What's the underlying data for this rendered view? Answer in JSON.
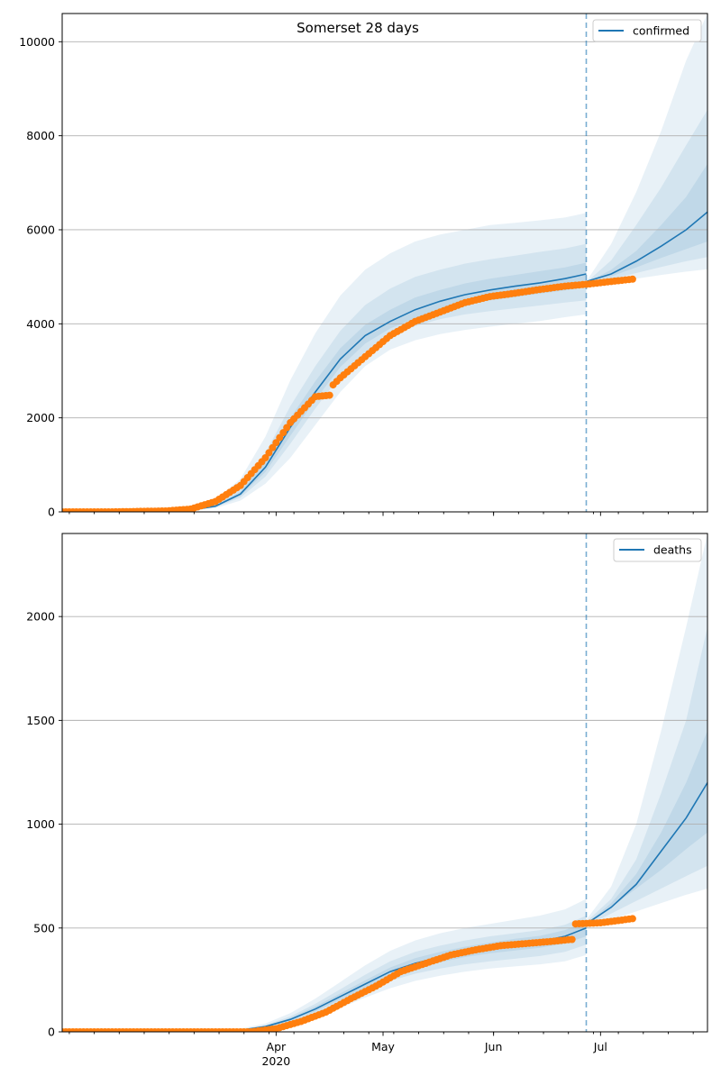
{
  "chart_data": [
    {
      "type": "line",
      "title": "Somerset 28 days",
      "legend": {
        "label": "confirmed",
        "position": "top-right"
      },
      "x_range": [
        "2020-02-01",
        "2020-07-31"
      ],
      "ylim": [
        0,
        10600
      ],
      "yticks": [
        0,
        2000,
        4000,
        6000,
        8000,
        10000
      ],
      "grid": "y",
      "forecast_start": "2020-06-27",
      "colors": {
        "model": "#1f77b4",
        "band": "#1f77b4",
        "observed": "#ff7f0e",
        "vline": "#1f77b4"
      },
      "model": {
        "x": [
          "2020-02-01",
          "2020-03-01",
          "2020-03-08",
          "2020-03-15",
          "2020-03-22",
          "2020-03-29",
          "2020-04-05",
          "2020-04-12",
          "2020-04-19",
          "2020-04-26",
          "2020-05-03",
          "2020-05-10",
          "2020-05-17",
          "2020-05-24",
          "2020-05-31",
          "2020-06-07",
          "2020-06-14",
          "2020-06-21",
          "2020-06-27"
        ],
        "y": [
          0,
          10,
          40,
          120,
          380,
          950,
          1800,
          2550,
          3250,
          3750,
          4050,
          4300,
          4480,
          4620,
          4720,
          4800,
          4870,
          4960,
          5060
        ]
      },
      "bands": [
        {
          "x": [
            "2020-02-01",
            "2020-03-01",
            "2020-03-08",
            "2020-03-15",
            "2020-03-22",
            "2020-03-29",
            "2020-04-05",
            "2020-04-12",
            "2020-04-19",
            "2020-04-26",
            "2020-05-03",
            "2020-05-10",
            "2020-05-17",
            "2020-05-24",
            "2020-05-31",
            "2020-06-07",
            "2020-06-14",
            "2020-06-21",
            "2020-06-27"
          ],
          "low": [
            0,
            5,
            20,
            80,
            240,
            600,
            1150,
            1850,
            2550,
            3100,
            3450,
            3650,
            3780,
            3870,
            3940,
            4000,
            4060,
            4140,
            4200
          ],
          "high": [
            0,
            20,
            80,
            260,
            700,
            1600,
            2800,
            3800,
            4600,
            5150,
            5500,
            5750,
            5900,
            6000,
            6100,
            6150,
            6200,
            6260,
            6360
          ]
        },
        {
          "x": [
            "2020-02-01",
            "2020-03-01",
            "2020-03-08",
            "2020-03-15",
            "2020-03-22",
            "2020-03-29",
            "2020-04-05",
            "2020-04-12",
            "2020-04-19",
            "2020-04-26",
            "2020-05-03",
            "2020-05-10",
            "2020-05-17",
            "2020-05-24",
            "2020-05-31",
            "2020-06-07",
            "2020-06-14",
            "2020-06-21",
            "2020-06-27"
          ],
          "low": [
            0,
            7,
            28,
            100,
            300,
            750,
            1450,
            2200,
            2900,
            3400,
            3750,
            3950,
            4100,
            4200,
            4270,
            4330,
            4390,
            4450,
            4500
          ],
          "high": [
            0,
            15,
            60,
            180,
            520,
            1250,
            2250,
            3100,
            3850,
            4400,
            4750,
            5000,
            5150,
            5280,
            5370,
            5450,
            5530,
            5600,
            5700
          ]
        },
        {
          "x": [
            "2020-02-01",
            "2020-03-01",
            "2020-03-08",
            "2020-03-15",
            "2020-03-22",
            "2020-03-29",
            "2020-04-05",
            "2020-04-12",
            "2020-04-19",
            "2020-04-26",
            "2020-05-03",
            "2020-05-10",
            "2020-05-17",
            "2020-05-24",
            "2020-05-31",
            "2020-06-07",
            "2020-06-14",
            "2020-06-21",
            "2020-06-27"
          ],
          "low": [
            0,
            8,
            34,
            110,
            340,
            850,
            1620,
            2380,
            3080,
            3580,
            3900,
            4120,
            4300,
            4410,
            4500,
            4570,
            4640,
            4710,
            4780
          ],
          "high": [
            0,
            12,
            48,
            140,
            430,
            1080,
            2000,
            2780,
            3480,
            3980,
            4300,
            4560,
            4720,
            4860,
            4960,
            5040,
            5120,
            5200,
            5300
          ]
        },
        {
          "x": [
            "2020-06-27",
            "2020-07-04",
            "2020-07-11",
            "2020-07-18",
            "2020-07-25",
            "2020-07-31"
          ],
          "low": [
            4800,
            4880,
            4960,
            5040,
            5110,
            5160
          ],
          "high": [
            4900,
            5700,
            6800,
            8100,
            9600,
            10600
          ]
        },
        {
          "x": [
            "2020-06-27",
            "2020-07-04",
            "2020-07-11",
            "2020-07-18",
            "2020-07-25",
            "2020-07-31"
          ],
          "low": [
            4850,
            4950,
            5080,
            5210,
            5330,
            5420
          ],
          "high": [
            4880,
            5350,
            6100,
            6900,
            7800,
            8550
          ]
        },
        {
          "x": [
            "2020-06-27",
            "2020-07-04",
            "2020-07-11",
            "2020-07-18",
            "2020-07-25",
            "2020-07-31"
          ],
          "low": [
            4870,
            5010,
            5200,
            5400,
            5590,
            5750
          ],
          "high": [
            4870,
            5150,
            5550,
            6100,
            6700,
            7400
          ]
        }
      ],
      "forecast": {
        "x": [
          "2020-06-27",
          "2020-07-04",
          "2020-07-11",
          "2020-07-18",
          "2020-07-25",
          "2020-07-31"
        ],
        "y": [
          4900,
          5060,
          5330,
          5650,
          6000,
          6380
        ]
      },
      "observed": {
        "x": [
          "2020-02-01",
          "2020-02-15",
          "2020-03-01",
          "2020-03-08",
          "2020-03-15",
          "2020-03-22",
          "2020-03-29",
          "2020-04-05",
          "2020-04-12",
          "2020-04-16",
          "2020-04-17",
          "2020-04-19",
          "2020-04-26",
          "2020-05-03",
          "2020-05-10",
          "2020-05-17",
          "2020-05-24",
          "2020-05-31",
          "2020-06-07",
          "2020-06-14",
          "2020-06-21",
          "2020-06-27",
          "2020-07-04",
          "2020-07-10"
        ],
        "y": [
          0,
          0,
          20,
          60,
          220,
          560,
          1150,
          1900,
          2450,
          2480,
          2700,
          2850,
          3300,
          3750,
          4050,
          4250,
          4450,
          4580,
          4650,
          4730,
          4800,
          4840,
          4900,
          4950
        ]
      }
    },
    {
      "type": "line",
      "title": "",
      "legend": {
        "label": "deaths",
        "position": "top-right"
      },
      "x_range": [
        "2020-02-01",
        "2020-07-31"
      ],
      "ylim": [
        0,
        2400
      ],
      "yticks": [
        0,
        500,
        1000,
        1500,
        2000
      ],
      "grid": "y",
      "forecast_start": "2020-06-27",
      "xticks": [
        {
          "date": "2020-04-01",
          "label": "Apr",
          "sublabel": "2020"
        },
        {
          "date": "2020-05-01",
          "label": "May",
          "sublabel": ""
        },
        {
          "date": "2020-06-01",
          "label": "Jun",
          "sublabel": ""
        },
        {
          "date": "2020-07-01",
          "label": "Jul",
          "sublabel": ""
        }
      ],
      "colors": {
        "model": "#1f77b4",
        "band": "#1f77b4",
        "observed": "#ff7f0e",
        "vline": "#1f77b4"
      },
      "model": {
        "x": [
          "2020-02-01",
          "2020-03-15",
          "2020-03-22",
          "2020-03-29",
          "2020-04-05",
          "2020-04-12",
          "2020-04-19",
          "2020-04-26",
          "2020-05-03",
          "2020-05-10",
          "2020-05-17",
          "2020-05-24",
          "2020-05-31",
          "2020-06-07",
          "2020-06-14",
          "2020-06-21",
          "2020-06-27"
        ],
        "y": [
          0,
          2,
          8,
          25,
          60,
          110,
          170,
          230,
          290,
          330,
          360,
          385,
          405,
          420,
          435,
          460,
          500
        ]
      },
      "bands": [
        {
          "x": [
            "2020-02-01",
            "2020-03-15",
            "2020-03-22",
            "2020-03-29",
            "2020-04-05",
            "2020-04-12",
            "2020-04-19",
            "2020-04-26",
            "2020-05-03",
            "2020-05-10",
            "2020-05-17",
            "2020-05-24",
            "2020-05-31",
            "2020-06-07",
            "2020-06-14",
            "2020-06-21",
            "2020-06-27"
          ],
          "low": [
            0,
            0,
            3,
            12,
            35,
            70,
            115,
            165,
            210,
            245,
            270,
            290,
            305,
            315,
            325,
            340,
            370
          ],
          "high": [
            0,
            4,
            15,
            40,
            90,
            160,
            240,
            320,
            390,
            440,
            475,
            500,
            520,
            540,
            560,
            590,
            640
          ]
        },
        {
          "x": [
            "2020-02-01",
            "2020-03-15",
            "2020-03-22",
            "2020-03-29",
            "2020-04-05",
            "2020-04-12",
            "2020-04-19",
            "2020-04-26",
            "2020-05-03",
            "2020-05-10",
            "2020-05-17",
            "2020-05-24",
            "2020-05-31",
            "2020-06-07",
            "2020-06-14",
            "2020-06-21",
            "2020-06-27"
          ],
          "low": [
            0,
            1,
            5,
            18,
            47,
            88,
            140,
            195,
            245,
            280,
            305,
            325,
            340,
            352,
            365,
            385,
            420
          ],
          "high": [
            0,
            3,
            11,
            32,
            74,
            135,
            205,
            275,
            340,
            385,
            415,
            440,
            460,
            475,
            490,
            515,
            560
          ]
        },
        {
          "x": [
            "2020-02-01",
            "2020-03-15",
            "2020-03-22",
            "2020-03-29",
            "2020-04-05",
            "2020-04-12",
            "2020-04-19",
            "2020-04-26",
            "2020-05-03",
            "2020-05-10",
            "2020-05-17",
            "2020-05-24",
            "2020-05-31",
            "2020-06-07",
            "2020-06-14",
            "2020-06-21",
            "2020-06-27"
          ],
          "low": [
            0,
            1,
            6,
            21,
            53,
            98,
            155,
            212,
            270,
            305,
            335,
            360,
            378,
            392,
            405,
            425,
            460
          ],
          "high": [
            0,
            2,
            10,
            29,
            67,
            122,
            185,
            248,
            310,
            355,
            385,
            410,
            430,
            448,
            462,
            490,
            530
          ]
        },
        {
          "x": [
            "2020-06-27",
            "2020-07-04",
            "2020-07-11",
            "2020-07-18",
            "2020-07-25",
            "2020-07-31"
          ],
          "low": [
            500,
            540,
            580,
            620,
            660,
            690
          ],
          "high": [
            540,
            700,
            1000,
            1450,
            1950,
            2400
          ]
        },
        {
          "x": [
            "2020-06-27",
            "2020-07-04",
            "2020-07-11",
            "2020-07-18",
            "2020-07-25",
            "2020-07-31"
          ],
          "low": [
            510,
            570,
            630,
            690,
            750,
            800
          ],
          "high": [
            530,
            640,
            830,
            1150,
            1500,
            1950
          ]
        },
        {
          "x": [
            "2020-06-27",
            "2020-07-04",
            "2020-07-11",
            "2020-07-18",
            "2020-07-25",
            "2020-07-31"
          ],
          "low": [
            515,
            600,
            690,
            780,
            880,
            960
          ],
          "high": [
            520,
            620,
            760,
            960,
            1200,
            1450
          ]
        }
      ],
      "forecast": {
        "x": [
          "2020-06-27",
          "2020-07-04",
          "2020-07-11",
          "2020-07-18",
          "2020-07-25",
          "2020-07-31"
        ],
        "y": [
          520,
          600,
          710,
          870,
          1030,
          1200
        ]
      },
      "observed": {
        "x": [
          "2020-02-01",
          "2020-03-25",
          "2020-04-01",
          "2020-04-08",
          "2020-04-15",
          "2020-04-22",
          "2020-04-29",
          "2020-05-06",
          "2020-05-13",
          "2020-05-20",
          "2020-05-27",
          "2020-06-03",
          "2020-06-10",
          "2020-06-17",
          "2020-06-23",
          "2020-06-24",
          "2020-07-01",
          "2020-07-10"
        ],
        "y": [
          0,
          0,
          15,
          50,
          95,
          160,
          220,
          290,
          330,
          370,
          395,
          415,
          425,
          435,
          445,
          520,
          525,
          545
        ]
      }
    }
  ]
}
